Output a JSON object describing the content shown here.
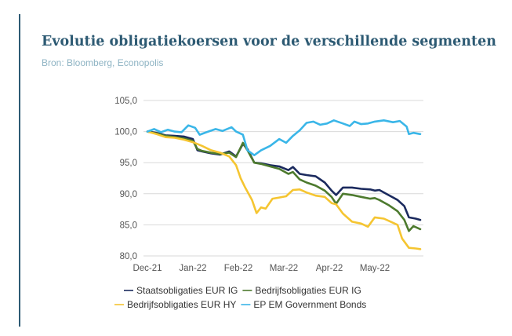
{
  "header": {
    "title": "Evolutie obligatiekoersen voor de verschillende segmenten",
    "source": "Bron: Bloomberg, Econopolis"
  },
  "chart_data": {
    "type": "line",
    "title": "Evolutie obligatiekoersen voor de verschillende segmenten",
    "xlabel": "",
    "ylabel": "",
    "x_ticks": [
      "Dec-21",
      "Jan-22",
      "Feb-22",
      "Mar-22",
      "Apr-22",
      "May-22"
    ],
    "y_ticks": [
      "105,0",
      "100,0",
      "95,0",
      "90,0",
      "85,0",
      "80,0"
    ],
    "ylim": [
      80,
      105
    ],
    "xlim": [
      0,
      6.1
    ],
    "grid": true,
    "legend_position": "bottom",
    "series": [
      {
        "name": "Staatsobligaties EUR IG",
        "color": "#1b2a5e",
        "points": [
          [
            0,
            100
          ],
          [
            0.2,
            99.8
          ],
          [
            0.4,
            99.4
          ],
          [
            0.6,
            99.3
          ],
          [
            0.8,
            99.2
          ],
          [
            1.0,
            98.8
          ],
          [
            1.1,
            97.0
          ],
          [
            1.2,
            96.8
          ],
          [
            1.4,
            96.5
          ],
          [
            1.6,
            96.3
          ],
          [
            1.8,
            96.8
          ],
          [
            1.95,
            96.0
          ],
          [
            2.1,
            98.0
          ],
          [
            2.2,
            97.2
          ],
          [
            2.35,
            95.0
          ],
          [
            2.5,
            94.9
          ],
          [
            2.7,
            94.6
          ],
          [
            2.9,
            94.4
          ],
          [
            3.1,
            93.8
          ],
          [
            3.2,
            94.3
          ],
          [
            3.35,
            93.2
          ],
          [
            3.5,
            93.0
          ],
          [
            3.7,
            92.8
          ],
          [
            3.9,
            91.8
          ],
          [
            4.05,
            90.5
          ],
          [
            4.15,
            89.8
          ],
          [
            4.3,
            91.0
          ],
          [
            4.5,
            91.0
          ],
          [
            4.7,
            90.8
          ],
          [
            4.9,
            90.7
          ],
          [
            5.0,
            90.5
          ],
          [
            5.1,
            90.6
          ],
          [
            5.3,
            89.8
          ],
          [
            5.5,
            89.0
          ],
          [
            5.65,
            88.0
          ],
          [
            5.75,
            86.2
          ],
          [
            5.9,
            86.0
          ],
          [
            6.0,
            85.8
          ]
        ]
      },
      {
        "name": "Bedrijfsobligaties EUR IG",
        "color": "#4d7a2e",
        "points": [
          [
            0,
            100
          ],
          [
            0.2,
            99.7
          ],
          [
            0.4,
            99.3
          ],
          [
            0.6,
            99.1
          ],
          [
            0.8,
            98.9
          ],
          [
            1.0,
            98.5
          ],
          [
            1.1,
            97.2
          ],
          [
            1.2,
            96.9
          ],
          [
            1.4,
            96.6
          ],
          [
            1.6,
            96.4
          ],
          [
            1.8,
            96.6
          ],
          [
            1.95,
            95.9
          ],
          [
            2.1,
            98.2
          ],
          [
            2.2,
            97.0
          ],
          [
            2.35,
            95.0
          ],
          [
            2.5,
            94.8
          ],
          [
            2.7,
            94.4
          ],
          [
            2.9,
            94.0
          ],
          [
            3.1,
            93.2
          ],
          [
            3.2,
            93.5
          ],
          [
            3.35,
            92.3
          ],
          [
            3.5,
            91.8
          ],
          [
            3.7,
            91.3
          ],
          [
            3.9,
            90.5
          ],
          [
            4.05,
            89.5
          ],
          [
            4.15,
            88.4
          ],
          [
            4.3,
            90.0
          ],
          [
            4.5,
            89.8
          ],
          [
            4.7,
            89.5
          ],
          [
            4.9,
            89.2
          ],
          [
            5.0,
            89.3
          ],
          [
            5.1,
            89.0
          ],
          [
            5.3,
            88.2
          ],
          [
            5.5,
            87.2
          ],
          [
            5.65,
            85.8
          ],
          [
            5.75,
            84.0
          ],
          [
            5.85,
            84.8
          ],
          [
            6.0,
            84.3
          ]
        ]
      },
      {
        "name": "Bedrijfsobligaties EUR HY",
        "color": "#f5c531",
        "points": [
          [
            0,
            100
          ],
          [
            0.2,
            99.6
          ],
          [
            0.4,
            99.1
          ],
          [
            0.6,
            99.0
          ],
          [
            0.8,
            98.7
          ],
          [
            1.0,
            98.3
          ],
          [
            1.2,
            97.7
          ],
          [
            1.4,
            97.0
          ],
          [
            1.6,
            96.6
          ],
          [
            1.8,
            96.0
          ],
          [
            1.95,
            94.6
          ],
          [
            2.05,
            92.5
          ],
          [
            2.15,
            91.0
          ],
          [
            2.3,
            89.0
          ],
          [
            2.4,
            86.9
          ],
          [
            2.5,
            87.8
          ],
          [
            2.6,
            87.6
          ],
          [
            2.75,
            89.2
          ],
          [
            2.9,
            89.4
          ],
          [
            3.05,
            89.6
          ],
          [
            3.2,
            90.6
          ],
          [
            3.35,
            90.7
          ],
          [
            3.5,
            90.2
          ],
          [
            3.7,
            89.7
          ],
          [
            3.9,
            89.5
          ],
          [
            4.05,
            88.5
          ],
          [
            4.15,
            88.3
          ],
          [
            4.3,
            86.8
          ],
          [
            4.5,
            85.5
          ],
          [
            4.7,
            85.2
          ],
          [
            4.85,
            84.7
          ],
          [
            5.0,
            86.2
          ],
          [
            5.2,
            86.0
          ],
          [
            5.35,
            85.5
          ],
          [
            5.5,
            85.0
          ],
          [
            5.6,
            82.8
          ],
          [
            5.75,
            81.3
          ],
          [
            5.9,
            81.2
          ],
          [
            6.0,
            81.1
          ]
        ]
      },
      {
        "name": "EP EM Government Bonds",
        "color": "#3ab6e8",
        "points": [
          [
            0,
            100
          ],
          [
            0.15,
            100.4
          ],
          [
            0.3,
            99.9
          ],
          [
            0.45,
            100.3
          ],
          [
            0.6,
            100.0
          ],
          [
            0.75,
            99.9
          ],
          [
            0.9,
            101.0
          ],
          [
            1.05,
            100.6
          ],
          [
            1.15,
            99.5
          ],
          [
            1.3,
            99.9
          ],
          [
            1.5,
            100.4
          ],
          [
            1.65,
            100.1
          ],
          [
            1.85,
            100.7
          ],
          [
            1.95,
            100.0
          ],
          [
            2.1,
            99.5
          ],
          [
            2.2,
            97.0
          ],
          [
            2.35,
            96.2
          ],
          [
            2.5,
            97.0
          ],
          [
            2.7,
            97.7
          ],
          [
            2.9,
            98.8
          ],
          [
            3.05,
            98.2
          ],
          [
            3.2,
            99.3
          ],
          [
            3.35,
            100.2
          ],
          [
            3.5,
            101.4
          ],
          [
            3.65,
            101.6
          ],
          [
            3.8,
            101.1
          ],
          [
            3.95,
            101.3
          ],
          [
            4.1,
            101.8
          ],
          [
            4.3,
            101.3
          ],
          [
            4.45,
            100.9
          ],
          [
            4.55,
            101.6
          ],
          [
            4.7,
            101.2
          ],
          [
            4.85,
            101.3
          ],
          [
            5.0,
            101.6
          ],
          [
            5.2,
            101.8
          ],
          [
            5.4,
            101.5
          ],
          [
            5.55,
            101.7
          ],
          [
            5.7,
            100.8
          ],
          [
            5.75,
            99.6
          ],
          [
            5.85,
            99.8
          ],
          [
            6.0,
            99.6
          ]
        ]
      }
    ]
  }
}
